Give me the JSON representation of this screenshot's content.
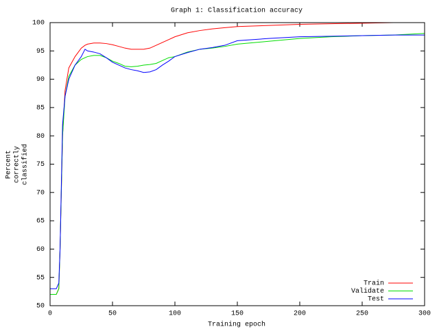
{
  "chart_data": {
    "type": "line",
    "title": "Graph 1:  Classification accuracy",
    "xlabel": "Training epoch",
    "ylabel": [
      "Percent",
      "correctly",
      "classified"
    ],
    "x": [
      0,
      5,
      7,
      8,
      10,
      12,
      15,
      20,
      25,
      28,
      30,
      35,
      40,
      45,
      50,
      55,
      60,
      65,
      70,
      75,
      80,
      85,
      90,
      95,
      100,
      110,
      120,
      130,
      140,
      150,
      175,
      200,
      225,
      250,
      275,
      300
    ],
    "series": [
      {
        "name": "Train",
        "color": "#ff0000",
        "values": [
          52,
          52,
          53,
          60,
          80,
          88,
          92,
          94,
          95.5,
          96,
          96.2,
          96.4,
          96.4,
          96.3,
          96.1,
          95.8,
          95.5,
          95.3,
          95.3,
          95.3,
          95.5,
          96,
          96.5,
          97,
          97.5,
          98.2,
          98.6,
          98.9,
          99.1,
          99.3,
          99.5,
          99.7,
          99.8,
          99.9,
          100,
          100
        ]
      },
      {
        "name": "Validate",
        "color": "#00dd00",
        "values": [
          52,
          52,
          53,
          60,
          80,
          87,
          90.5,
          92.5,
          93.5,
          93.8,
          94,
          94.2,
          94.2,
          93.8,
          93.2,
          92.8,
          92.3,
          92.2,
          92.3,
          92.5,
          92.6,
          92.8,
          93.3,
          93.8,
          94,
          94.8,
          95.3,
          95.5,
          95.8,
          96.2,
          96.7,
          97.2,
          97.5,
          97.7,
          97.8,
          98.1
        ]
      },
      {
        "name": "Test",
        "color": "#0000ff",
        "values": [
          53,
          53,
          54,
          60,
          82,
          87,
          90,
          92.5,
          94,
          95.3,
          95,
          94.8,
          94.5,
          93.8,
          93,
          92.5,
          92,
          91.7,
          91.5,
          91.2,
          91.3,
          91.7,
          92.5,
          93.2,
          94,
          94.7,
          95.3,
          95.6,
          96,
          96.8,
          97.2,
          97.5,
          97.6,
          97.7,
          97.8,
          97.8
        ]
      }
    ],
    "xlim": [
      0,
      300
    ],
    "xticks": [
      0,
      50,
      100,
      150,
      200,
      250,
      300
    ],
    "ylim": [
      50,
      100
    ],
    "yticks": [
      50,
      55,
      60,
      65,
      70,
      75,
      80,
      85,
      90,
      95,
      100
    ],
    "grid": false,
    "legend": "bottom-right"
  }
}
